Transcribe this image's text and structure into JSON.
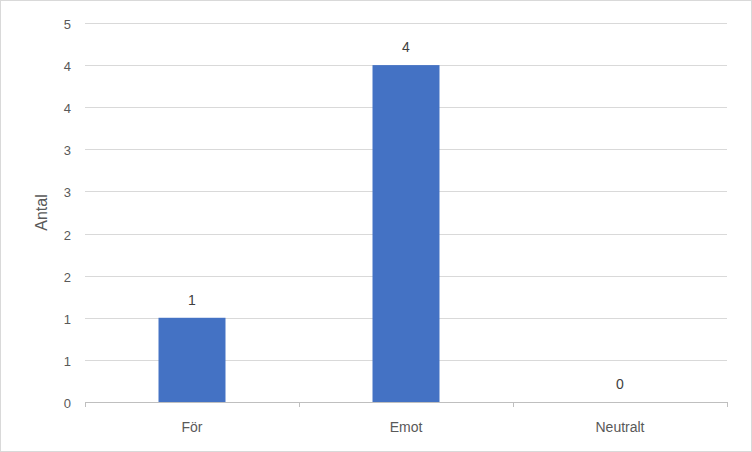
{
  "chart_data": {
    "type": "bar",
    "y_label": "Antal",
    "categories": [
      "För",
      "Emot",
      "Neutralt"
    ],
    "values": [
      1,
      4,
      0
    ],
    "color": "#4472c4",
    "ylim": [
      0,
      4.5
    ],
    "yticks": [
      0,
      {
        "value": 0.5,
        "label": "1"
      },
      1,
      {
        "value": 1.5,
        "label": "2"
      },
      2,
      {
        "value": 2.5,
        "label": "3"
      },
      3,
      {
        "value": 3.5,
        "label": "4"
      },
      4,
      {
        "value": 4.5,
        "label": "5"
      }
    ],
    "grid": true,
    "data_labels": true
  }
}
